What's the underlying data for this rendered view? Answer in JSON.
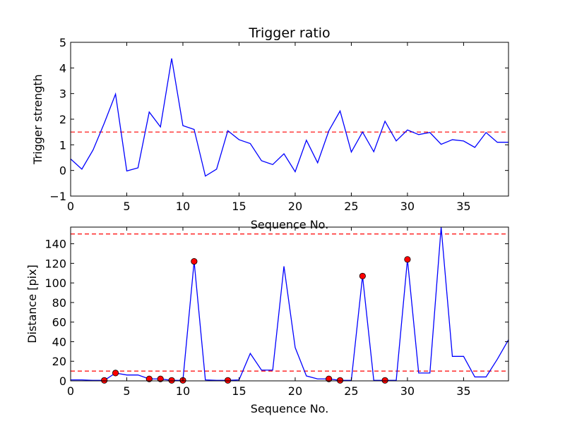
{
  "chart_data": [
    {
      "type": "line",
      "title": "Trigger ratio",
      "xlabel": "Sequence No.",
      "ylabel": "Trigger strength",
      "xlim": [
        0,
        39
      ],
      "ylim": [
        -1,
        5
      ],
      "xticks": [
        0,
        5,
        10,
        15,
        20,
        25,
        30,
        35
      ],
      "xtick_labels": [
        "0",
        "5",
        "10",
        "15",
        "20",
        "25",
        "30",
        "35"
      ],
      "yticks": [
        -1,
        0,
        1,
        2,
        3,
        4,
        5
      ],
      "ytick_labels": [
        "−1",
        "0",
        "1",
        "2",
        "3",
        "4",
        "5"
      ],
      "grid": false,
      "series": [
        {
          "color": "#0000ff",
          "x": [
            0,
            1,
            2,
            3,
            4,
            5,
            6,
            7,
            8,
            9,
            10,
            11,
            12,
            13,
            14,
            15,
            16,
            17,
            18,
            19,
            20,
            21,
            22,
            23,
            24,
            25,
            26,
            27,
            28,
            29,
            30,
            31,
            32,
            33,
            34,
            35,
            36,
            37,
            38,
            39
          ],
          "values": [
            0.45,
            0.05,
            0.8,
            1.85,
            2.98,
            -0.02,
            0.1,
            2.28,
            1.7,
            4.37,
            1.75,
            1.6,
            -0.22,
            0.05,
            1.55,
            1.2,
            1.05,
            0.38,
            0.23,
            0.65,
            -0.05,
            1.18,
            0.3,
            1.55,
            2.32,
            0.72,
            1.5,
            0.73,
            1.92,
            1.15,
            1.58,
            1.4,
            1.48,
            1.02,
            1.2,
            1.15,
            0.9,
            1.48,
            1.1,
            1.1
          ]
        }
      ],
      "hlines": [
        {
          "y": 1.5,
          "color": "#ff0000",
          "style": "dashed"
        }
      ]
    },
    {
      "type": "line",
      "title": "",
      "xlabel": "Sequence No.",
      "ylabel": "Distance [pix]",
      "xlim": [
        0,
        39
      ],
      "ylim": [
        0,
        157
      ],
      "xticks": [
        0,
        5,
        10,
        15,
        20,
        25,
        30,
        35
      ],
      "xtick_labels": [
        "0",
        "5",
        "10",
        "15",
        "20",
        "25",
        "30",
        "35"
      ],
      "yticks": [
        0,
        20,
        40,
        60,
        80,
        100,
        120,
        140
      ],
      "ytick_labels": [
        "0",
        "20",
        "40",
        "60",
        "80",
        "100",
        "120",
        "140"
      ],
      "grid": false,
      "series": [
        {
          "color": "#0000ff",
          "x": [
            0,
            1,
            2,
            3,
            4,
            5,
            6,
            7,
            8,
            9,
            10,
            11,
            12,
            13,
            14,
            15,
            16,
            17,
            18,
            19,
            20,
            21,
            22,
            23,
            24,
            25,
            26,
            27,
            28,
            29,
            30,
            31,
            32,
            33,
            34,
            35,
            36,
            37,
            38,
            39
          ],
          "values": [
            1,
            1,
            0.5,
            0.5,
            8,
            6,
            6,
            2,
            2,
            0.5,
            0.5,
            122,
            1,
            0.5,
            0.5,
            1,
            28,
            11,
            11,
            117,
            34,
            5,
            2,
            2,
            0.5,
            0.5,
            107,
            0.5,
            0.5,
            0.5,
            124,
            8,
            8,
            157,
            25,
            25,
            4,
            4,
            22,
            42
          ]
        }
      ],
      "markers": {
        "color": "#ff0000",
        "x": [
          3,
          4,
          7,
          8,
          9,
          10,
          11,
          14,
          23,
          24,
          26,
          28,
          30
        ],
        "values": [
          0.5,
          8,
          2,
          2,
          0.5,
          0.5,
          122,
          0.5,
          2,
          0.5,
          107,
          0.5,
          124
        ]
      },
      "hlines": [
        {
          "y": 150,
          "color": "#ff0000",
          "style": "dashed"
        },
        {
          "y": 10,
          "color": "#ff0000",
          "style": "dashed"
        }
      ]
    }
  ]
}
